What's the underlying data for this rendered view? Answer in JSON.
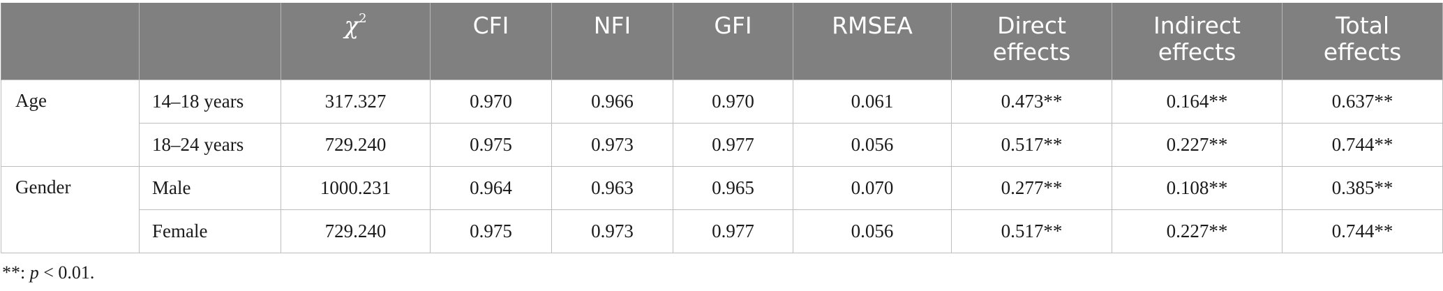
{
  "table": {
    "headers": {
      "group": "",
      "subgroup": "",
      "chi_symbol": "χ",
      "chi_superscript": "2",
      "cfi": "CFI",
      "nfi": "NFI",
      "gfi": "GFI",
      "rmsea": "RMSEA",
      "direct_line1": "Direct",
      "direct_line2": "effects",
      "indirect_line1": "Indirect",
      "indirect_line2": "effects",
      "total_line1": "Total",
      "total_line2": "effects"
    },
    "groups": [
      {
        "label": "Age",
        "rows": [
          {
            "sub": "14–18 years",
            "chi2": "317.327",
            "cfi": "0.970",
            "nfi": "0.966",
            "gfi": "0.970",
            "rmsea": "0.061",
            "direct": "0.473**",
            "indirect": "0.164**",
            "total": "0.637**"
          },
          {
            "sub": "18–24 years",
            "chi2": "729.240",
            "cfi": "0.975",
            "nfi": "0.973",
            "gfi": "0.977",
            "rmsea": "0.056",
            "direct": "0.517**",
            "indirect": "0.227**",
            "total": "0.744**"
          }
        ]
      },
      {
        "label": "Gender",
        "rows": [
          {
            "sub": "Male",
            "chi2": "1000.231",
            "cfi": "0.964",
            "nfi": "0.963",
            "gfi": "0.965",
            "rmsea": "0.070",
            "direct": "0.277**",
            "indirect": "0.108**",
            "total": "0.385**"
          },
          {
            "sub": "Female",
            "chi2": "729.240",
            "cfi": "0.975",
            "nfi": "0.973",
            "gfi": "0.977",
            "rmsea": "0.056",
            "direct": "0.517**",
            "indirect": "0.227**",
            "total": "0.744**"
          }
        ]
      }
    ]
  },
  "footnote": {
    "marker": "**: ",
    "p": "p",
    "rest": " < 0.01."
  }
}
